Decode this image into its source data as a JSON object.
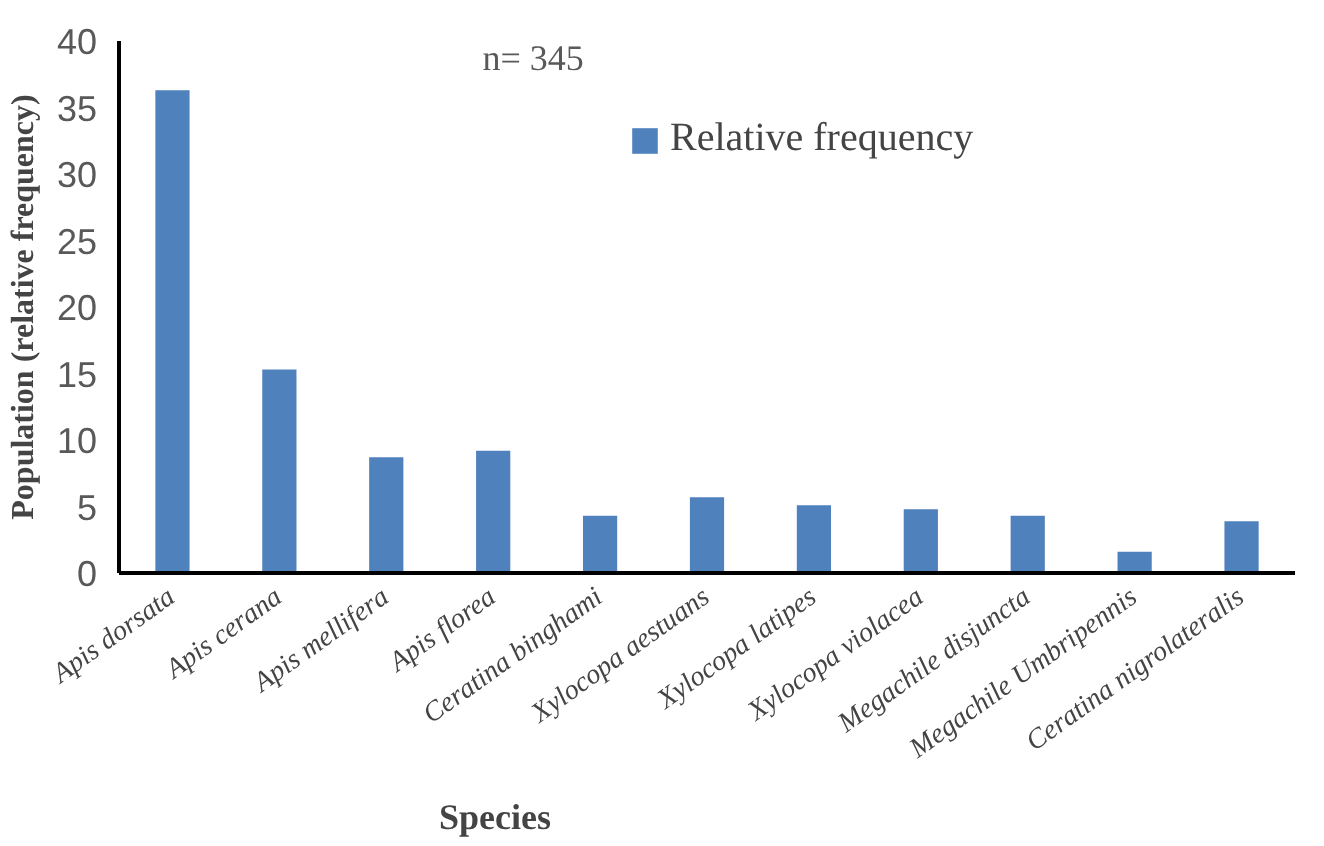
{
  "chart_data": {
    "type": "bar",
    "xlabel": "Species",
    "ylabel": "Population (relative frequency)",
    "categories": [
      "Apis dorsata",
      "Apis cerana",
      "Apis mellifera",
      "Apis florea",
      "Ceratina binghami",
      "Xylocopa aestuans",
      "Xylocopa latipes",
      "Xylocopa violacea",
      "Megachile disjuncta",
      "Megachile Umbripennis",
      "Ceratina nigrolateralis"
    ],
    "series": [
      {
        "name": "Relative frequency",
        "color": "#4f81bd",
        "values": [
          36.3,
          15.3,
          8.7,
          9.2,
          4.3,
          5.7,
          5.1,
          4.8,
          4.3,
          1.6,
          3.9
        ]
      }
    ],
    "ylim": [
      0,
      40
    ],
    "yticks": [
      0,
      5,
      10,
      15,
      20,
      25,
      30,
      35,
      40
    ],
    "annotations": [
      "n= 345"
    ],
    "grid": false,
    "legend": "top right"
  }
}
